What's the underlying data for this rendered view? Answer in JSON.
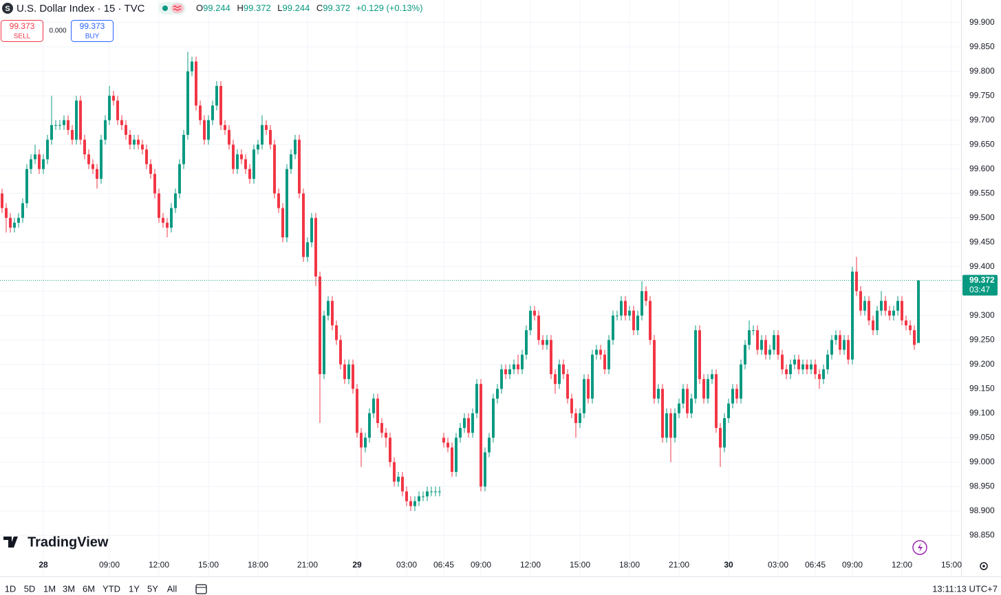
{
  "header": {
    "symbol_icon": "S",
    "title": "U.S. Dollar Index · 15 · TVC",
    "ohlc": [
      {
        "label": "O",
        "value": 99.244
      },
      {
        "label": "H",
        "value": 99.372
      },
      {
        "label": "L",
        "value": 99.244
      },
      {
        "label": "C",
        "value": 99.372
      }
    ],
    "change": "+0.129 (+0.13%)"
  },
  "trade": {
    "sell_price": "99.373",
    "sell_label": "SELL",
    "spread": "0.000",
    "buy_price": "99.373",
    "buy_label": "BUY"
  },
  "logo": "TradingView",
  "ranges": [
    "1D",
    "5D",
    "1M",
    "3M",
    "6M",
    "YTD",
    "1Y",
    "5Y",
    "All"
  ],
  "clock": "13:11:13 UTC+7",
  "chart_data": {
    "type": "candlestick",
    "up_color": "#089981",
    "down_color": "#f23645",
    "grid": true,
    "last_price": {
      "value": 99.372,
      "countdown": "03:47"
    },
    "ylim": [
      98.766,
      99.946
    ],
    "yticks": [
      {
        "value": 98.85,
        "label": "98.850"
      },
      {
        "value": 98.9,
        "label": "98.900"
      },
      {
        "value": 98.95,
        "label": "98.950"
      },
      {
        "value": 99.0,
        "label": "99.000"
      },
      {
        "value": 99.05,
        "label": "99.050"
      },
      {
        "value": 99.1,
        "label": "99.100"
      },
      {
        "value": 99.15,
        "label": "99.150"
      },
      {
        "value": 99.2,
        "label": "99.200"
      },
      {
        "value": 99.25,
        "label": "99.250"
      },
      {
        "value": 99.3,
        "label": "99.300"
      },
      {
        "value": 99.35,
        "label": "99.350"
      },
      {
        "value": 99.4,
        "label": "99.400"
      },
      {
        "value": 99.45,
        "label": "99.450"
      },
      {
        "value": 99.5,
        "label": "99.500"
      },
      {
        "value": 99.55,
        "label": "99.550"
      },
      {
        "value": 99.6,
        "label": "99.600"
      },
      {
        "value": 99.65,
        "label": "99.650"
      },
      {
        "value": 99.7,
        "label": "99.700"
      },
      {
        "value": 99.75,
        "label": "99.750"
      },
      {
        "value": 99.8,
        "label": "99.800"
      },
      {
        "value": 99.85,
        "label": "99.850"
      },
      {
        "value": 99.9,
        "label": "99.900"
      }
    ],
    "categories": [
      null,
      null,
      null,
      null,
      null,
      null,
      null,
      null,
      null,
      null,
      "28",
      null,
      null,
      null,
      null,
      null,
      null,
      null,
      null,
      null,
      null,
      null,
      null,
      null,
      null,
      null,
      "09:00",
      null,
      null,
      null,
      null,
      null,
      null,
      null,
      null,
      null,
      null,
      null,
      "12:00",
      null,
      null,
      null,
      null,
      null,
      null,
      null,
      null,
      null,
      null,
      null,
      "15:00",
      null,
      null,
      null,
      null,
      null,
      null,
      null,
      null,
      null,
      null,
      null,
      "18:00",
      null,
      null,
      null,
      null,
      null,
      null,
      null,
      null,
      null,
      null,
      null,
      "21:00",
      null,
      null,
      null,
      null,
      null,
      null,
      null,
      null,
      null,
      null,
      null,
      "29",
      null,
      null,
      null,
      null,
      null,
      null,
      null,
      null,
      null,
      null,
      null,
      "03:00",
      null,
      null,
      null,
      null,
      null,
      null,
      null,
      null,
      "06:45",
      null,
      null,
      null,
      null,
      null,
      null,
      null,
      null,
      "09:00",
      null,
      null,
      null,
      null,
      null,
      null,
      null,
      null,
      null,
      null,
      null,
      "12:00",
      null,
      null,
      null,
      null,
      null,
      null,
      null,
      null,
      null,
      null,
      null,
      "15:00",
      null,
      null,
      null,
      null,
      null,
      null,
      null,
      null,
      null,
      null,
      null,
      "18:00",
      null,
      null,
      null,
      null,
      null,
      null,
      null,
      null,
      null,
      null,
      null,
      "21:00",
      null,
      null,
      null,
      null,
      null,
      null,
      null,
      null,
      null,
      null,
      null,
      "30",
      null,
      null,
      null,
      null,
      null,
      null,
      null,
      null,
      null,
      null,
      null,
      "03:00",
      null,
      null,
      null,
      null,
      null,
      null,
      null,
      null,
      "06:45",
      null,
      null,
      null,
      null,
      null,
      null,
      null,
      null,
      "09:00",
      null,
      null,
      null,
      null,
      null,
      null,
      null,
      null,
      null,
      null,
      null,
      "12:00",
      null,
      null,
      null,
      null,
      null,
      null,
      null,
      null,
      null,
      null,
      null,
      "15:00"
    ],
    "open": [
      99.55,
      99.52,
      99.5,
      99.48,
      99.49,
      99.5,
      99.53,
      99.6,
      99.62,
      99.63,
      99.6,
      99.62,
      99.66,
      99.69,
      99.69,
      99.69,
      99.7,
      99.68,
      99.66,
      99.74,
      99.66,
      99.63,
      99.61,
      99.6,
      99.58,
      99.66,
      99.7,
      99.75,
      99.74,
      99.7,
      99.69,
      99.67,
      99.65,
      99.66,
      99.65,
      99.64,
      99.61,
      99.59,
      99.55,
      99.5,
      99.49,
      99.48,
      99.52,
      99.55,
      99.61,
      99.67,
      99.8,
      99.82,
      99.73,
      99.7,
      99.66,
      99.7,
      99.73,
      99.77,
      99.69,
      99.68,
      99.65,
      99.6,
      99.63,
      99.62,
      99.6,
      99.58,
      99.64,
      99.65,
      99.69,
      99.68,
      99.65,
      99.55,
      99.52,
      99.46,
      99.6,
      99.63,
      99.66,
      99.55,
      99.42,
      99.45,
      99.5,
      99.38,
      99.18,
      99.3,
      99.33,
      99.28,
      99.25,
      99.2,
      99.17,
      99.2,
      99.15,
      99.06,
      99.03,
      99.05,
      99.1,
      99.13,
      99.08,
      99.06,
      99.05,
      99.0,
      98.96,
      98.97,
      98.94,
      98.92,
      98.91,
      98.92,
      98.93,
      98.93,
      98.94,
      98.94,
      98.94,
      99.05,
      99.04,
      99.03,
      98.98,
      99.05,
      99.07,
      99.09,
      99.06,
      99.1,
      99.16,
      98.95,
      99.02,
      99.05,
      99.13,
      99.15,
      99.19,
      99.18,
      99.19,
      99.2,
      99.19,
      99.22,
      99.27,
      99.31,
      99.3,
      99.25,
      99.24,
      99.25,
      99.18,
      99.16,
      99.2,
      99.18,
      99.13,
      99.1,
      99.08,
      99.1,
      99.17,
      99.13,
      99.22,
      99.23,
      99.22,
      99.19,
      99.25,
      99.3,
      99.3,
      99.33,
      99.3,
      99.31,
      99.27,
      99.3,
      99.35,
      99.33,
      99.25,
      99.13,
      99.15,
      99.05,
      99.1,
      99.05,
      99.1,
      99.12,
      99.15,
      99.1,
      99.13,
      99.27,
      99.17,
      99.13,
      99.17,
      99.18,
      99.07,
      99.03,
      99.09,
      99.12,
      99.15,
      99.13,
      99.2,
      99.24,
      99.27,
      99.27,
      99.23,
      99.25,
      99.22,
      99.23,
      99.26,
      99.22,
      99.19,
      99.18,
      99.2,
      99.21,
      99.19,
      99.2,
      99.19,
      99.2,
      99.18,
      99.17,
      99.19,
      99.22,
      99.25,
      99.26,
      99.23,
      99.25,
      99.21,
      99.39,
      99.35,
      99.31,
      99.33,
      99.29,
      99.27,
      99.31,
      99.33,
      99.31,
      99.3,
      99.31,
      99.33,
      99.29,
      99.28,
      99.27,
      99.244,
      null,
      null,
      null,
      null,
      null,
      null,
      null,
      null
    ],
    "high": [
      99.56,
      99.53,
      99.51,
      99.5,
      99.51,
      99.54,
      99.61,
      99.63,
      99.65,
      99.64,
      99.63,
      99.67,
      99.75,
      99.7,
      99.7,
      99.71,
      99.71,
      99.69,
      99.75,
      99.75,
      99.67,
      99.64,
      99.62,
      99.61,
      99.67,
      99.71,
      99.77,
      99.76,
      99.75,
      99.71,
      99.7,
      99.68,
      99.67,
      99.67,
      99.66,
      99.65,
      99.62,
      99.6,
      99.56,
      99.51,
      99.5,
      99.53,
      99.56,
      99.62,
      99.68,
      99.84,
      99.83,
      99.83,
      99.74,
      99.71,
      99.71,
      99.74,
      99.78,
      99.78,
      99.7,
      99.69,
      99.66,
      99.64,
      99.64,
      99.63,
      99.61,
      99.65,
      99.66,
      99.71,
      99.7,
      99.69,
      99.66,
      99.56,
      99.53,
      99.61,
      99.64,
      99.67,
      99.67,
      99.56,
      99.46,
      99.51,
      99.51,
      99.39,
      99.31,
      99.34,
      99.34,
      99.29,
      99.26,
      99.21,
      99.21,
      99.21,
      99.16,
      99.07,
      99.06,
      99.11,
      99.14,
      99.14,
      99.09,
      99.07,
      99.06,
      99.01,
      98.98,
      98.98,
      98.95,
      98.93,
      98.93,
      98.94,
      98.94,
      98.95,
      98.95,
      98.95,
      98.95,
      99.06,
      99.05,
      99.04,
      99.06,
      99.08,
      99.1,
      99.1,
      99.11,
      99.17,
      99.17,
      99.03,
      99.06,
      99.14,
      99.16,
      99.2,
      99.2,
      99.2,
      99.21,
      99.22,
      99.23,
      99.28,
      99.32,
      99.32,
      99.31,
      99.26,
      99.26,
      99.26,
      99.19,
      99.21,
      99.21,
      99.19,
      99.14,
      99.11,
      99.11,
      99.18,
      99.18,
      99.23,
      99.24,
      99.24,
      99.23,
      99.26,
      99.31,
      99.31,
      99.34,
      99.34,
      99.32,
      99.32,
      99.31,
      99.37,
      99.36,
      99.34,
      99.26,
      99.16,
      99.16,
      99.11,
      99.11,
      99.11,
      99.13,
      99.16,
      99.16,
      99.14,
      99.28,
      99.28,
      99.18,
      99.18,
      99.19,
      99.19,
      99.08,
      99.1,
      99.13,
      99.16,
      99.16,
      99.21,
      99.25,
      99.29,
      99.28,
      99.28,
      99.26,
      99.26,
      99.24,
      99.27,
      99.27,
      99.23,
      99.2,
      99.21,
      99.22,
      99.22,
      99.21,
      99.21,
      99.21,
      99.21,
      99.19,
      99.2,
      99.23,
      99.26,
      99.27,
      99.27,
      99.26,
      99.26,
      99.4,
      99.42,
      99.36,
      99.34,
      99.34,
      99.3,
      99.32,
      99.35,
      99.34,
      99.32,
      99.32,
      99.34,
      99.34,
      99.3,
      99.29,
      99.28,
      99.372,
      null,
      null,
      null,
      null,
      null,
      null,
      null,
      null
    ],
    "low": [
      99.51,
      99.47,
      99.47,
      99.47,
      99.48,
      99.49,
      99.52,
      99.59,
      99.61,
      99.59,
      99.59,
      99.61,
      99.65,
      99.68,
      99.68,
      99.68,
      99.67,
      99.65,
      99.65,
      99.65,
      99.62,
      99.6,
      99.59,
      99.56,
      99.57,
      99.65,
      99.69,
      99.73,
      99.69,
      99.68,
      99.66,
      99.64,
      99.64,
      99.64,
      99.63,
      99.6,
      99.58,
      99.54,
      99.49,
      99.48,
      99.46,
      99.47,
      99.51,
      99.54,
      99.6,
      99.66,
      99.79,
      99.72,
      99.69,
      99.65,
      99.65,
      99.69,
      99.72,
      99.68,
      99.67,
      99.64,
      99.59,
      99.59,
      99.61,
      99.59,
      99.57,
      99.57,
      99.63,
      99.64,
      99.67,
      99.64,
      99.54,
      99.51,
      99.45,
      99.45,
      99.59,
      99.62,
      99.54,
      99.41,
      99.41,
      99.44,
      99.36,
      99.08,
      99.17,
      99.29,
      99.27,
      99.24,
      99.19,
      99.16,
      99.16,
      99.14,
      99.05,
      98.99,
      99.02,
      99.04,
      99.09,
      99.07,
      99.05,
      99.03,
      98.99,
      98.95,
      98.95,
      98.93,
      98.91,
      98.9,
      98.9,
      98.91,
      98.92,
      98.92,
      98.93,
      98.93,
      98.93,
      99.03,
      99.02,
      98.97,
      98.97,
      99.04,
      99.06,
      99.05,
      99.05,
      99.09,
      98.94,
      98.94,
      99.01,
      99.04,
      99.12,
      99.14,
      99.17,
      99.17,
      99.18,
      99.18,
      99.18,
      99.21,
      99.26,
      99.29,
      99.24,
      99.23,
      99.23,
      99.17,
      99.14,
      99.15,
      99.17,
      99.12,
      99.09,
      99.05,
      99.07,
      99.09,
      99.12,
      99.12,
      99.21,
      99.21,
      99.18,
      99.18,
      99.24,
      99.29,
      99.29,
      99.29,
      99.29,
      99.26,
      99.26,
      99.29,
      99.32,
      99.24,
      99.12,
      99.12,
      99.04,
      99.04,
      99.0,
      99.04,
      99.09,
      99.11,
      99.09,
      99.09,
      99.12,
      99.16,
      99.12,
      99.12,
      99.16,
      99.06,
      98.99,
      99.02,
      99.08,
      99.11,
      99.12,
      99.12,
      99.19,
      99.23,
      99.26,
      99.22,
      99.22,
      99.21,
      99.21,
      99.22,
      99.21,
      99.18,
      99.17,
      99.17,
      99.19,
      99.18,
      99.18,
      99.18,
      99.18,
      99.17,
      99.15,
      99.16,
      99.18,
      99.21,
      99.24,
      99.22,
      99.22,
      99.2,
      99.2,
      99.34,
      99.3,
      99.3,
      99.28,
      99.26,
      99.26,
      99.3,
      99.3,
      99.29,
      99.29,
      99.3,
      99.28,
      99.27,
      99.26,
      99.23,
      99.244,
      null,
      null,
      null,
      null,
      null,
      null,
      null,
      null
    ],
    "close": [
      99.52,
      99.5,
      99.48,
      99.49,
      99.5,
      99.53,
      99.6,
      99.62,
      99.63,
      99.6,
      99.62,
      99.66,
      99.69,
      99.69,
      99.69,
      99.7,
      99.68,
      99.66,
      99.74,
      99.66,
      99.63,
      99.61,
      99.6,
      99.58,
      99.66,
      99.7,
      99.75,
      99.74,
      99.7,
      99.69,
      99.67,
      99.65,
      99.66,
      99.65,
      99.64,
      99.61,
      99.59,
      99.55,
      99.5,
      99.49,
      99.48,
      99.52,
      99.55,
      99.61,
      99.67,
      99.8,
      99.82,
      99.73,
      99.7,
      99.66,
      99.7,
      99.73,
      99.77,
      99.69,
      99.68,
      99.65,
      99.6,
      99.63,
      99.62,
      99.6,
      99.58,
      99.64,
      99.65,
      99.69,
      99.68,
      99.65,
      99.55,
      99.52,
      99.46,
      99.6,
      99.63,
      99.66,
      99.55,
      99.42,
      99.45,
      99.5,
      99.38,
      99.18,
      99.3,
      99.33,
      99.28,
      99.25,
      99.2,
      99.17,
      99.2,
      99.15,
      99.06,
      99.03,
      99.05,
      99.1,
      99.13,
      99.08,
      99.06,
      99.05,
      99.0,
      98.96,
      98.97,
      98.94,
      98.92,
      98.91,
      98.92,
      98.93,
      98.93,
      98.94,
      98.94,
      98.94,
      98.94,
      99.04,
      99.03,
      98.98,
      99.05,
      99.07,
      99.09,
      99.06,
      99.1,
      99.16,
      98.95,
      99.02,
      99.05,
      99.13,
      99.15,
      99.19,
      99.18,
      99.19,
      99.2,
      99.19,
      99.22,
      99.27,
      99.31,
      99.3,
      99.25,
      99.24,
      99.25,
      99.18,
      99.16,
      99.2,
      99.18,
      99.13,
      99.1,
      99.08,
      99.1,
      99.17,
      99.13,
      99.22,
      99.23,
      99.22,
      99.19,
      99.25,
      99.3,
      99.3,
      99.33,
      99.3,
      99.31,
      99.27,
      99.3,
      99.35,
      99.33,
      99.25,
      99.13,
      99.15,
      99.05,
      99.1,
      99.05,
      99.1,
      99.12,
      99.15,
      99.1,
      99.13,
      99.27,
      99.17,
      99.13,
      99.17,
      99.18,
      99.07,
      99.03,
      99.09,
      99.12,
      99.15,
      99.13,
      99.2,
      99.24,
      99.27,
      99.27,
      99.23,
      99.25,
      99.22,
      99.23,
      99.26,
      99.22,
      99.19,
      99.18,
      99.2,
      99.21,
      99.19,
      99.2,
      99.19,
      99.2,
      99.18,
      99.17,
      99.19,
      99.22,
      99.25,
      99.26,
      99.23,
      99.25,
      99.21,
      99.39,
      99.35,
      99.31,
      99.33,
      99.29,
      99.27,
      99.31,
      99.33,
      99.31,
      99.3,
      99.31,
      99.33,
      99.29,
      99.28,
      99.27,
      99.24,
      99.372,
      null,
      null,
      null,
      null,
      null,
      null,
      null,
      null
    ]
  }
}
